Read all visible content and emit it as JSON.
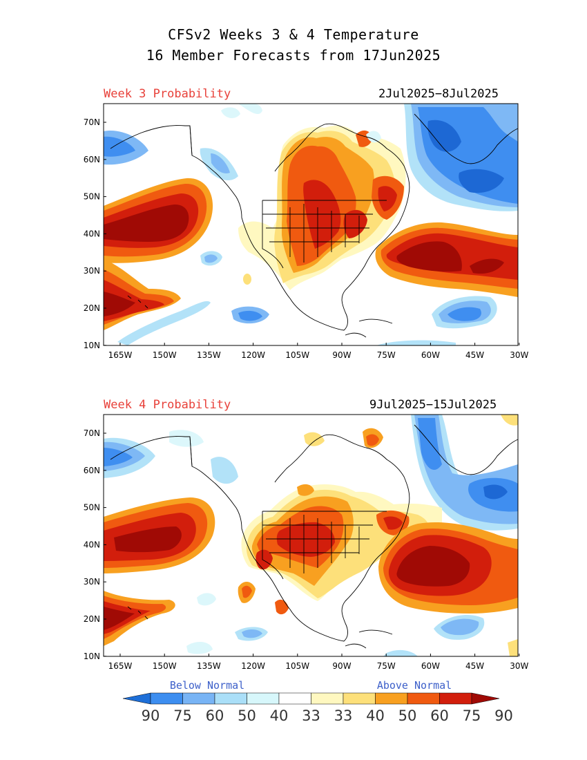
{
  "header": {
    "title_line1": "CFSv2 Weeks 3 & 4 Temperature",
    "title_line2": "16 Member Forecasts from 17Jun2025"
  },
  "panels": [
    {
      "week_label": "Week 3 Probability",
      "date_range": "2Jul2025−8Jul2025"
    },
    {
      "week_label": "Week 4 Probability",
      "date_range": "9Jul2025−15Jul2025"
    }
  ],
  "axes": {
    "lon_ticks": [
      "165W",
      "150W",
      "135W",
      "120W",
      "105W",
      "90W",
      "75W",
      "60W",
      "45W",
      "30W"
    ],
    "lat_ticks": [
      "70N",
      "60N",
      "50N",
      "40N",
      "30N",
      "20N",
      "10N"
    ]
  },
  "legend": {
    "below_label": "Below Normal",
    "above_label": "Above Normal",
    "values": [
      "90",
      "75",
      "60",
      "50",
      "40",
      "33",
      "33",
      "40",
      "50",
      "60",
      "75",
      "90"
    ],
    "colors": [
      "#1e6fd8",
      "#3d8ef0",
      "#78b4f5",
      "#aadff8",
      "#d7f7fb",
      "#ffffff",
      "#fff8c0",
      "#fde07a",
      "#f8a020",
      "#f05a10",
      "#d21e0c",
      "#a00a05"
    ]
  },
  "colors": {
    "below_dark": "#1d68d4",
    "below_med": "#3f8ef0",
    "below_light": "#7eb8f5",
    "below_pale": "#b2e2f8",
    "below_faint": "#dcf7fb",
    "above_faint": "#fff8c0",
    "above_light": "#fde07a",
    "above_med": "#f8a020",
    "above_strong": "#f05a10",
    "above_dark": "#d21e0c",
    "above_max": "#a00a05",
    "label_red": "#e8413a",
    "label_blue": "#3c5fc9"
  }
}
